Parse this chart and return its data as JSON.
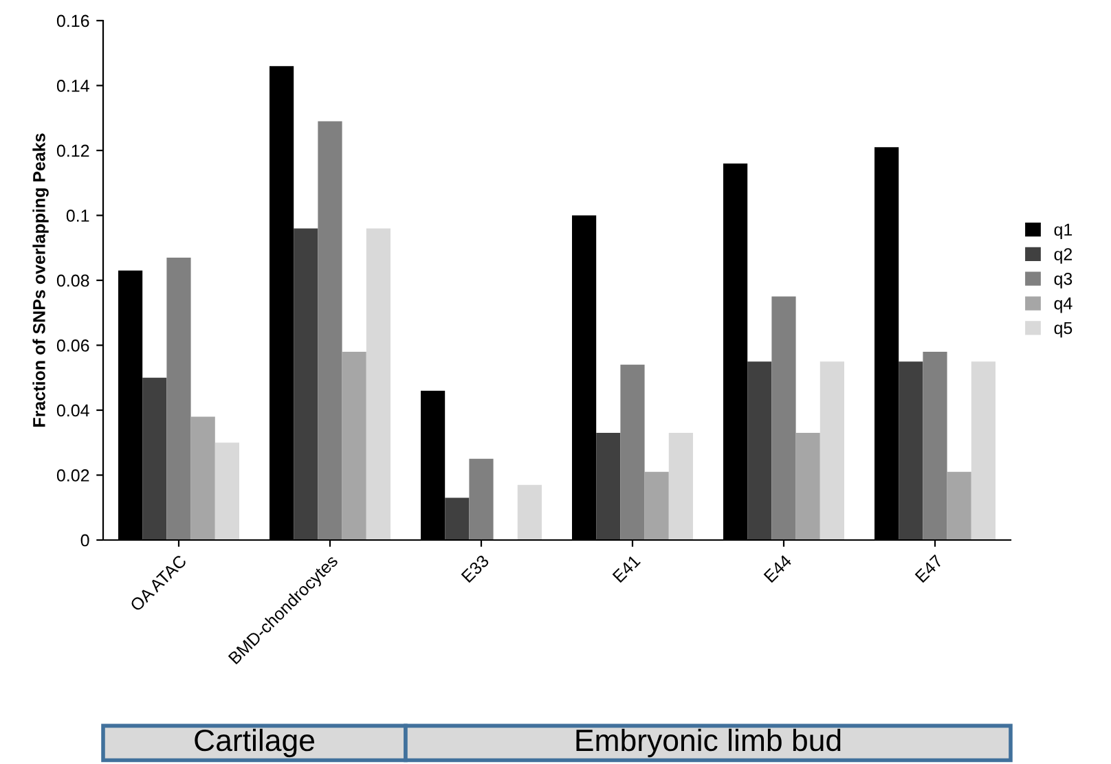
{
  "chart_data": {
    "type": "bar",
    "ylabel": "Fraction of SNPs overlapping Peaks",
    "categories": [
      "OA ATAC",
      "BMD-chondrocytes",
      "E33",
      "E41",
      "E44",
      "E47"
    ],
    "series": [
      {
        "name": "q1",
        "color": "#000000",
        "values": [
          0.083,
          0.146,
          0.046,
          0.1,
          0.116,
          0.121
        ]
      },
      {
        "name": "q2",
        "color": "#404040",
        "values": [
          0.05,
          0.096,
          0.013,
          0.033,
          0.055,
          0.055
        ]
      },
      {
        "name": "q3",
        "color": "#808080",
        "values": [
          0.087,
          0.129,
          0.025,
          0.054,
          0.075,
          0.058
        ]
      },
      {
        "name": "q4",
        "color": "#a6a6a6",
        "values": [
          0.038,
          0.058,
          0.0,
          0.021,
          0.033,
          0.021
        ]
      },
      {
        "name": "q5",
        "color": "#d9d9d9",
        "values": [
          0.03,
          0.096,
          0.017,
          0.033,
          0.055,
          0.055
        ]
      }
    ],
    "ylim": [
      0,
      0.16
    ],
    "yticks": [
      {
        "value": 0,
        "label": "0"
      },
      0.02,
      0.04,
      0.06,
      0.08,
      {
        "value": 0.1,
        "label": "0.1"
      },
      0.12,
      0.14,
      0.16
    ],
    "legend": "right",
    "grid": false,
    "annotations": [
      "Cartilage",
      "Embryonic limb bud"
    ]
  }
}
